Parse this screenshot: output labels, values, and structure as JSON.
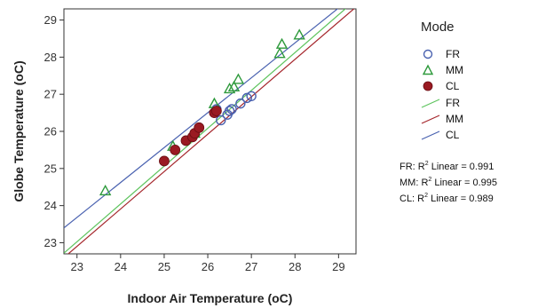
{
  "chart_data": {
    "type": "scatter",
    "xlabel": "Indoor Air Temperature (oC)",
    "ylabel": "Globe Temperature (oC)",
    "xlim": [
      22.7,
      29.4
    ],
    "ylim": [
      22.7,
      29.3
    ],
    "x_ticks": [
      23,
      24,
      25,
      26,
      27,
      28,
      29
    ],
    "y_ticks": [
      23,
      24,
      25,
      26,
      27,
      28,
      29
    ],
    "grid": false,
    "legend_position": "right",
    "legend_title": "Mode",
    "series": [
      {
        "name": "FR",
        "color": "#4a62b0",
        "marker": "circle",
        "points": [
          [
            26.2,
            26.6
          ],
          [
            26.3,
            26.3
          ],
          [
            26.45,
            26.45
          ],
          [
            26.5,
            26.55
          ],
          [
            26.55,
            26.6
          ],
          [
            26.75,
            26.75
          ],
          [
            26.9,
            26.9
          ],
          [
            27.0,
            26.95
          ]
        ],
        "fit": [
          [
            22.7,
            22.72
          ],
          [
            29.4,
            29.55
          ]
        ]
      },
      {
        "name": "MM",
        "color": "#2e9a3c",
        "marker": "triangle",
        "points": [
          [
            23.65,
            24.4
          ],
          [
            25.2,
            25.6
          ],
          [
            25.7,
            25.95
          ],
          [
            26.15,
            26.75
          ],
          [
            26.5,
            27.15
          ],
          [
            26.6,
            27.2
          ],
          [
            26.7,
            27.4
          ],
          [
            27.65,
            28.1
          ],
          [
            27.7,
            28.35
          ],
          [
            28.1,
            28.6
          ]
        ],
        "fit": [
          [
            22.7,
            22.6
          ],
          [
            29.4,
            29.35
          ]
        ]
      },
      {
        "name": "CL",
        "color": "#9a1a22",
        "marker": "dot",
        "points": [
          [
            25.0,
            25.2
          ],
          [
            25.25,
            25.5
          ],
          [
            25.5,
            25.75
          ],
          [
            25.65,
            25.85
          ],
          [
            25.7,
            25.95
          ],
          [
            25.8,
            26.1
          ],
          [
            26.15,
            26.5
          ],
          [
            26.2,
            26.55
          ]
        ],
        "fit": [
          [
            22.7,
            23.4
          ],
          [
            29.4,
            29.7
          ]
        ]
      }
    ]
  },
  "legend": {
    "title": "Mode",
    "markers": [
      {
        "label": "FR",
        "color": "#4a62b0",
        "icon": "circle-marker-icon"
      },
      {
        "label": "MM",
        "color": "#2e9a3c",
        "icon": "triangle-marker-icon"
      },
      {
        "label": "CL",
        "color": "#9a1a22",
        "icon": "dot-marker-icon"
      }
    ],
    "lines": [
      {
        "label": "FR",
        "color": "#5ec45e"
      },
      {
        "label": "MM",
        "color": "#a5262c"
      },
      {
        "label": "CL",
        "color": "#4a62b0"
      }
    ]
  },
  "fit_stats": [
    {
      "prefix": "FR: R",
      "sup": "2",
      "suffix": " Linear = 0.991"
    },
    {
      "prefix": "MM: R",
      "sup": "2",
      "suffix": "  Linear = 0.995"
    },
    {
      "prefix": "CL: R",
      "sup": "2",
      "suffix": "  Linear = 0.989"
    }
  ]
}
